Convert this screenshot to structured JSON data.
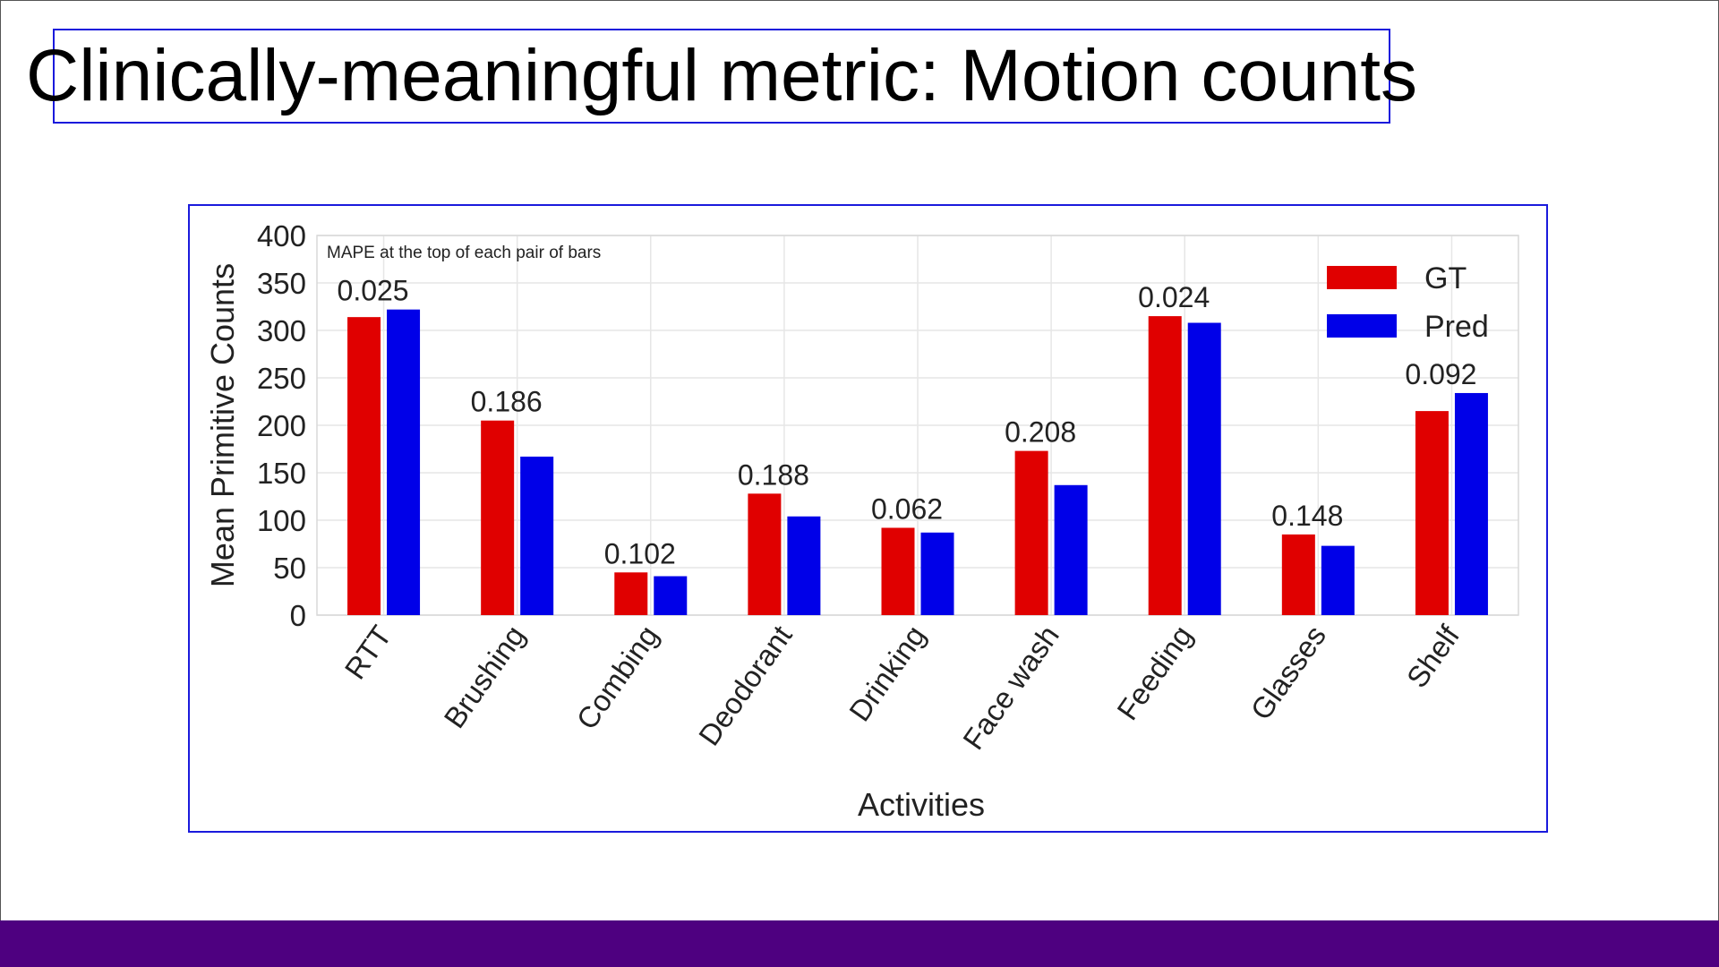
{
  "slide": {
    "title": "Clinically-meaningful metric: Motion counts",
    "footer_color": "#4e0080",
    "frame_color": "#1a1adc"
  },
  "chart_data": {
    "type": "bar",
    "title": "",
    "annotation": "MAPE at the top of each pair of bars",
    "xlabel": "Activities",
    "ylabel": "Mean Primitive Counts",
    "ylim": [
      0,
      400
    ],
    "yticks": [
      "0",
      "50",
      "100",
      "150",
      "200",
      "250",
      "300",
      "350",
      "400"
    ],
    "grid": true,
    "legend_placement": "top-right",
    "categories": [
      "RTT",
      "Brushing",
      "Combing",
      "Deodorant",
      "Drinking",
      "Face wash",
      "Feeding",
      "Glasses",
      "Shelf"
    ],
    "series": [
      {
        "name": "GT",
        "color": "#e00000",
        "values": [
          314,
          205,
          45,
          128,
          92,
          173,
          315,
          85,
          215
        ]
      },
      {
        "name": "Pred",
        "color": "#0000e8",
        "values": [
          322,
          167,
          41,
          104,
          87,
          137,
          308,
          73,
          234
        ]
      }
    ],
    "mape_labels": [
      "0.025",
      "0.186",
      "0.102",
      "0.188",
      "0.062",
      "0.208",
      "0.024",
      "0.148",
      "0.092"
    ]
  }
}
